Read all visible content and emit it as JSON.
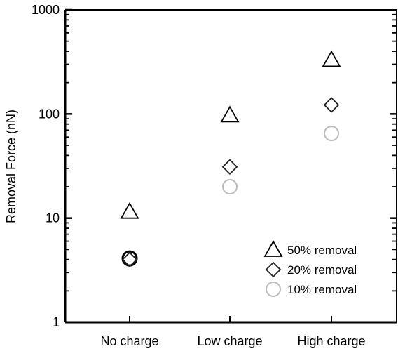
{
  "chart_data": {
    "type": "scatter",
    "categories": [
      "No charge",
      "Low charge",
      "High charge"
    ],
    "ylabel": "Removal Force (nN)",
    "xlabel": "",
    "title": "",
    "y_scale": "log",
    "ylim": [
      1,
      1000
    ],
    "y_ticks": [
      {
        "value": 1,
        "label": "1"
      },
      {
        "value": 10,
        "label": "10"
      },
      {
        "value": 100,
        "label": "100"
      },
      {
        "value": 1000,
        "label": "1000"
      }
    ],
    "grid": false,
    "legend_position": "bottom-right",
    "series": [
      {
        "name": "50% removal",
        "marker": "triangle",
        "color": "#000000",
        "values": [
          11.5,
          97,
          330
        ]
      },
      {
        "name": "20% removal",
        "marker": "diamond",
        "color": "#222222",
        "values": [
          4.0,
          31,
          122
        ]
      },
      {
        "name": "10% removal",
        "marker": "circle",
        "color": "#bbbbbb",
        "values": [
          4.1,
          20,
          65
        ]
      }
    ]
  }
}
